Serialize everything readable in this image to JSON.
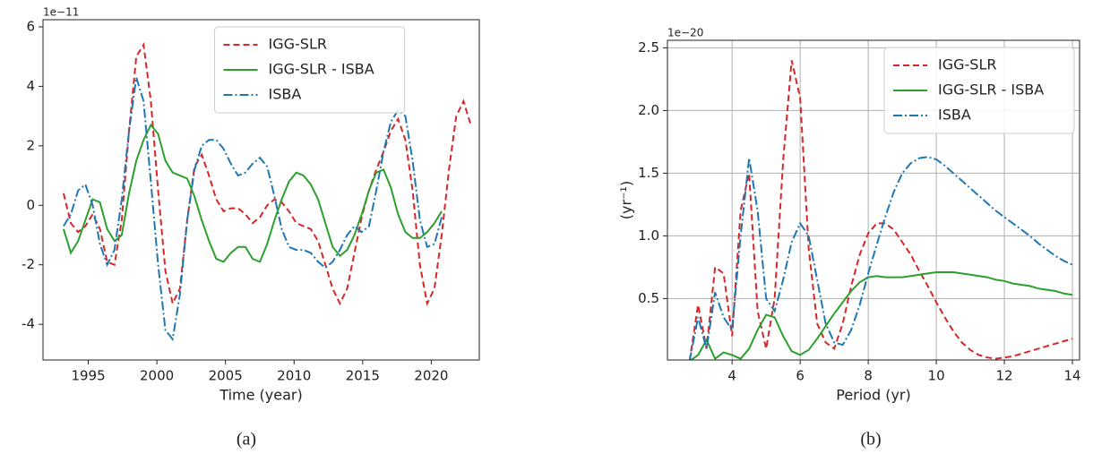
{
  "chart_data": [
    {
      "type": "line",
      "offset_label": "1e−11",
      "xlabel": "Time (year)",
      "caption": "(a)",
      "x": [
        1993.2,
        1993.73,
        1994.26,
        1994.79,
        1995.32,
        1995.85,
        1996.38,
        1996.91,
        1997.44,
        1997.97,
        1998.5,
        1999.03,
        1999.56,
        2000.09,
        2000.62,
        2001.15,
        2001.68,
        2002.21,
        2002.74,
        2003.27,
        2003.8,
        2004.33,
        2004.86,
        2005.39,
        2005.92,
        2006.45,
        2006.98,
        2007.51,
        2008.04,
        2008.57,
        2009.1,
        2009.63,
        2010.16,
        2010.69,
        2011.22,
        2011.75,
        2012.28,
        2012.81,
        2013.34,
        2013.87,
        2014.4,
        2014.93,
        2015.46,
        2015.99,
        2016.52,
        2017.05,
        2017.58,
        2018.11,
        2018.64,
        2019.17,
        2019.7,
        2020.23,
        2020.76,
        2021.29,
        2021.82,
        2022.35,
        2022.88
      ],
      "series": [
        {
          "name": "IGG-SLR",
          "color": "#d62728",
          "linestyle": "dashed",
          "values": [
            0.4,
            -0.6,
            -0.9,
            -0.7,
            -0.3,
            -0.8,
            -1.9,
            -2.0,
            -0.5,
            2.5,
            5.0,
            5.4,
            3.5,
            0.5,
            -2.2,
            -3.3,
            -2.8,
            -0.5,
            1.3,
            1.7,
            1.0,
            0.2,
            -0.2,
            -0.1,
            -0.1,
            -0.3,
            -0.6,
            -0.4,
            0.0,
            0.2,
            0.1,
            -0.2,
            -0.6,
            -0.7,
            -0.8,
            -1.2,
            -2.0,
            -2.8,
            -3.3,
            -2.8,
            -1.6,
            -0.4,
            0.5,
            1.2,
            1.8,
            2.5,
            2.9,
            2.2,
            0.5,
            -2.0,
            -3.3,
            -2.8,
            -1.0,
            1.2,
            3.0,
            3.5,
            2.7
          ]
        },
        {
          "name": "IGG-SLR - ISBA",
          "color": "#2ca02c",
          "linestyle": "solid",
          "values": [
            -0.8,
            -1.6,
            -1.2,
            -0.5,
            0.2,
            0.1,
            -0.8,
            -1.2,
            -1.0,
            0.4,
            1.5,
            2.2,
            2.7,
            2.4,
            1.5,
            1.1,
            1.0,
            0.9,
            0.3,
            -0.5,
            -1.2,
            -1.8,
            -1.9,
            -1.6,
            -1.4,
            -1.4,
            -1.8,
            -1.9,
            -1.3,
            -0.5,
            0.2,
            0.8,
            1.1,
            1.0,
            0.7,
            0.2,
            -0.6,
            -1.4,
            -1.7,
            -1.5,
            -1.0,
            -0.3,
            0.5,
            1.1,
            1.2,
            0.6,
            -0.3,
            -0.9,
            -1.1,
            -1.1,
            -0.9,
            -0.6,
            -0.2,
            null,
            null,
            null,
            null
          ]
        },
        {
          "name": "ISBA",
          "color": "#1f77b4",
          "linestyle": "dashdot",
          "values": [
            -0.7,
            -0.3,
            0.5,
            0.7,
            0.0,
            -1.3,
            -2.0,
            -1.5,
            0.2,
            2.5,
            4.3,
            3.5,
            0.8,
            -2.0,
            -4.2,
            -4.5,
            -3.0,
            -0.5,
            1.2,
            2.0,
            2.2,
            2.2,
            1.9,
            1.4,
            1.0,
            1.1,
            1.4,
            1.6,
            1.3,
            0.3,
            -0.8,
            -1.4,
            -1.5,
            -1.5,
            -1.6,
            -1.9,
            -2.1,
            -1.9,
            -1.5,
            -1.0,
            -0.7,
            -0.9,
            -0.7,
            0.5,
            1.8,
            2.8,
            3.2,
            3.0,
            1.5,
            -0.5,
            -1.4,
            -1.3,
            -0.4,
            null,
            null,
            null,
            null
          ]
        }
      ],
      "xlim": [
        1991.7,
        2023.5
      ],
      "xticks": [
        1995,
        2000,
        2005,
        2010,
        2015,
        2020
      ],
      "ylim": [
        -5.2,
        6.24
      ],
      "yticks": [
        -4,
        -2,
        0,
        2,
        4,
        6
      ],
      "grid": false,
      "legend": "upper center"
    },
    {
      "type": "line",
      "offset_label": "1e−20",
      "xlabel": "Period (yr)",
      "ylabel": "(yr⁻¹)",
      "caption": "(b)",
      "x": [
        2.75,
        3,
        3.25,
        3.5,
        3.75,
        4,
        4.25,
        4.5,
        4.75,
        5,
        5.25,
        5.5,
        5.75,
        6,
        6.25,
        6.5,
        6.75,
        7,
        7.25,
        7.5,
        7.75,
        8,
        8.25,
        8.5,
        8.75,
        9,
        9.25,
        9.5,
        9.75,
        10,
        10.25,
        10.5,
        10.75,
        11,
        11.25,
        11.5,
        11.75,
        12,
        12.25,
        12.5,
        12.75,
        13,
        13.25,
        13.5,
        13.75,
        14
      ],
      "series": [
        {
          "name": "IGG-SLR",
          "color": "#d62728",
          "linestyle": "dashed",
          "values": [
            0.0,
            0.45,
            0.1,
            0.75,
            0.7,
            0.2,
            1.2,
            1.5,
            0.4,
            0.1,
            0.5,
            1.6,
            2.4,
            2.1,
            0.9,
            0.3,
            0.15,
            0.1,
            0.3,
            0.6,
            0.85,
            1.02,
            1.1,
            1.1,
            1.05,
            0.95,
            0.85,
            0.72,
            0.6,
            0.47,
            0.35,
            0.24,
            0.15,
            0.09,
            0.05,
            0.03,
            0.02,
            0.03,
            0.04,
            0.06,
            0.08,
            0.1,
            0.12,
            0.14,
            0.16,
            0.18
          ]
        },
        {
          "name": "IGG-SLR - ISBA",
          "color": "#2ca02c",
          "linestyle": "solid",
          "values": [
            0.0,
            0.05,
            0.17,
            0.02,
            0.07,
            0.05,
            0.02,
            0.1,
            0.25,
            0.37,
            0.35,
            0.2,
            0.08,
            0.05,
            0.09,
            0.18,
            0.28,
            0.38,
            0.47,
            0.56,
            0.63,
            0.67,
            0.68,
            0.67,
            0.67,
            0.67,
            0.68,
            0.69,
            0.7,
            0.71,
            0.71,
            0.71,
            0.7,
            0.69,
            0.68,
            0.67,
            0.65,
            0.64,
            0.62,
            0.61,
            0.6,
            0.58,
            0.57,
            0.56,
            0.54,
            0.53
          ]
        },
        {
          "name": "ISBA",
          "color": "#1f77b4",
          "linestyle": "dashdot",
          "values": [
            0.0,
            0.35,
            0.1,
            0.55,
            0.35,
            0.25,
            1.0,
            1.62,
            1.2,
            0.5,
            0.4,
            0.65,
            0.95,
            1.1,
            1.0,
            0.65,
            0.3,
            0.15,
            0.13,
            0.25,
            0.45,
            0.7,
            0.93,
            1.15,
            1.35,
            1.5,
            1.58,
            1.62,
            1.63,
            1.61,
            1.56,
            1.5,
            1.44,
            1.38,
            1.32,
            1.26,
            1.2,
            1.15,
            1.1,
            1.05,
            1.0,
            0.94,
            0.89,
            0.84,
            0.8,
            0.77
          ]
        }
      ],
      "xlim": [
        2.1,
        14.21
      ],
      "xticks": [
        4,
        6,
        8,
        10,
        12,
        14
      ],
      "ylim": [
        0.01,
        2.56
      ],
      "yticks": [
        0.5,
        {
          "value": 1,
          "label": "1.0"
        },
        1.5,
        {
          "value": 2,
          "label": "2.0"
        },
        2.5
      ],
      "grid": true,
      "legend": "upper right"
    }
  ]
}
